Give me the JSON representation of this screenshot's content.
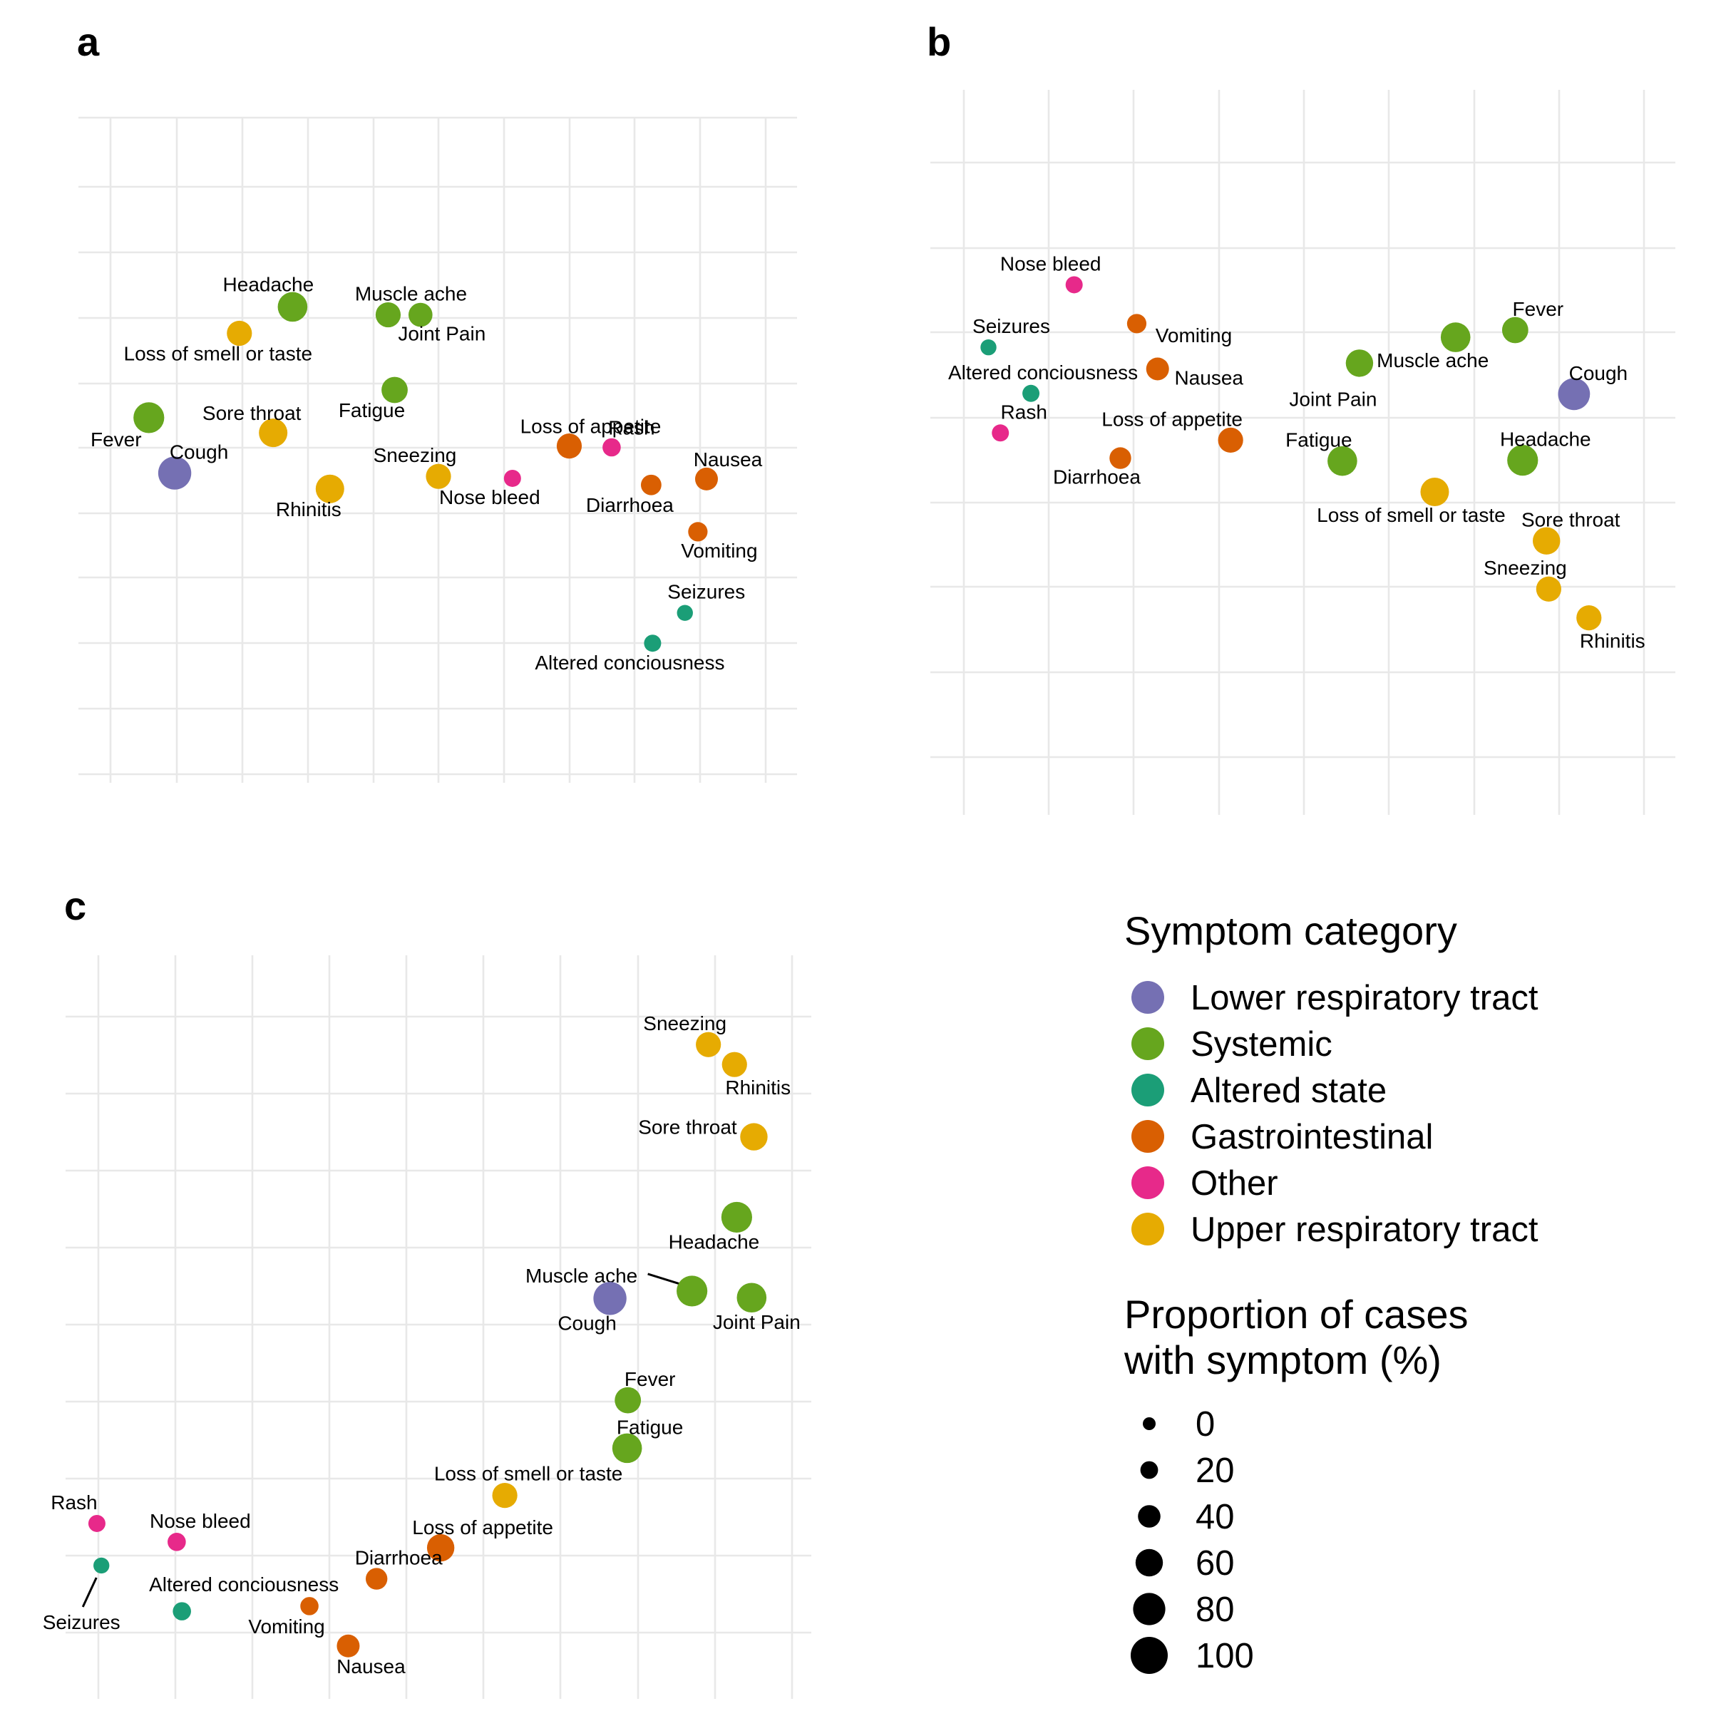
{
  "colors": {
    "Lower respiratory tract": "#7570b3",
    "Systemic": "#66a61e",
    "Altered state": "#1b9e77",
    "Gastrointestinal": "#d95f02",
    "Other": "#e7298a",
    "Upper respiratory tract": "#e6ab02"
  },
  "legend": {
    "category_title": "Symptom category",
    "categories": [
      "Lower respiratory tract",
      "Systemic",
      "Altered state",
      "Gastrointestinal",
      "Other",
      "Upper respiratory tract"
    ],
    "size_title_line1": "Proportion of cases",
    "size_title_line2": "with symptom (%)",
    "sizes": [
      0,
      20,
      40,
      60,
      80,
      100
    ]
  },
  "chart_data": [
    {
      "panel": "a",
      "type": "scatter",
      "grid": true,
      "axes": "hidden",
      "points": [
        {
          "label": "Headache",
          "category": "Systemic",
          "x": 0.298,
          "y": 0.713,
          "size": 80
        },
        {
          "label": "Muscle ache",
          "category": "Systemic",
          "x": 0.431,
          "y": 0.701,
          "size": 60
        },
        {
          "label": "Joint Pain",
          "category": "Systemic",
          "x": 0.476,
          "y": 0.701,
          "size": 55
        },
        {
          "label": "Loss of smell or taste",
          "category": "Upper respiratory tract",
          "x": 0.224,
          "y": 0.673,
          "size": 60
        },
        {
          "label": "Fatigue",
          "category": "Systemic",
          "x": 0.44,
          "y": 0.587,
          "size": 65
        },
        {
          "label": "Fever",
          "category": "Systemic",
          "x": 0.098,
          "y": 0.545,
          "size": 85
        },
        {
          "label": "Sore throat",
          "category": "Upper respiratory tract",
          "x": 0.271,
          "y": 0.522,
          "size": 75
        },
        {
          "label": "Cough",
          "category": "Lower respiratory tract",
          "x": 0.134,
          "y": 0.461,
          "size": 95
        },
        {
          "label": "Rhinitis",
          "category": "Upper respiratory tract",
          "x": 0.35,
          "y": 0.437,
          "size": 75
        },
        {
          "label": "Sneezing",
          "category": "Upper respiratory tract",
          "x": 0.501,
          "y": 0.456,
          "size": 60
        },
        {
          "label": "Nose bleed",
          "category": "Other",
          "x": 0.604,
          "y": 0.453,
          "size": 25
        },
        {
          "label": "Loss of appetite",
          "category": "Gastrointestinal",
          "x": 0.683,
          "y": 0.502,
          "size": 60
        },
        {
          "label": "Rash",
          "category": "Other",
          "x": 0.742,
          "y": 0.5,
          "size": 30
        },
        {
          "label": "Diarrhoea",
          "category": "Gastrointestinal",
          "x": 0.797,
          "y": 0.443,
          "size": 40
        },
        {
          "label": "Nausea",
          "category": "Gastrointestinal",
          "x": 0.874,
          "y": 0.452,
          "size": 50
        },
        {
          "label": "Vomiting",
          "category": "Gastrointestinal",
          "x": 0.862,
          "y": 0.372,
          "size": 35
        },
        {
          "label": "Seizures",
          "category": "Altered state",
          "x": 0.844,
          "y": 0.249,
          "size": 20
        },
        {
          "label": "Altered conciousness",
          "category": "Altered state",
          "x": 0.799,
          "y": 0.203,
          "size": 25
        }
      ]
    },
    {
      "panel": "b",
      "type": "scatter",
      "grid": true,
      "axes": "hidden",
      "points": [
        {
          "label": "Nose bleed",
          "category": "Other",
          "x": 0.193,
          "y": 0.729,
          "size": 25
        },
        {
          "label": "Vomiting",
          "category": "Gastrointestinal",
          "x": 0.277,
          "y": 0.675,
          "size": 35
        },
        {
          "label": "Seizures",
          "category": "Altered state",
          "x": 0.078,
          "y": 0.642,
          "size": 20
        },
        {
          "label": "Nausea",
          "category": "Gastrointestinal",
          "x": 0.305,
          "y": 0.612,
          "size": 50
        },
        {
          "label": "Altered conciousness",
          "category": "Altered state",
          "x": 0.135,
          "y": 0.578,
          "size": 25
        },
        {
          "label": "Rash",
          "category": "Other",
          "x": 0.094,
          "y": 0.523,
          "size": 25
        },
        {
          "label": "Diarrhoea",
          "category": "Gastrointestinal",
          "x": 0.255,
          "y": 0.488,
          "size": 45
        },
        {
          "label": "Loss of appetite",
          "category": "Gastrointestinal",
          "x": 0.403,
          "y": 0.513,
          "size": 60
        },
        {
          "label": "Joint Pain",
          "category": "Systemic",
          "x": 0.576,
          "y": 0.62,
          "size": 70
        },
        {
          "label": "Muscle ache",
          "category": "Systemic",
          "x": 0.705,
          "y": 0.656,
          "size": 80
        },
        {
          "label": "Fever",
          "category": "Systemic",
          "x": 0.785,
          "y": 0.666,
          "size": 65
        },
        {
          "label": "Cough",
          "category": "Lower respiratory tract",
          "x": 0.864,
          "y": 0.577,
          "size": 90
        },
        {
          "label": "Fatigue",
          "category": "Systemic",
          "x": 0.553,
          "y": 0.484,
          "size": 80
        },
        {
          "label": "Headache",
          "category": "Systemic",
          "x": 0.795,
          "y": 0.485,
          "size": 85
        },
        {
          "label": "Loss of smell or taste",
          "category": "Upper respiratory tract",
          "x": 0.677,
          "y": 0.441,
          "size": 75
        },
        {
          "label": "Sore throat",
          "category": "Upper respiratory tract",
          "x": 0.827,
          "y": 0.373,
          "size": 70
        },
        {
          "label": "Sneezing",
          "category": "Upper respiratory tract",
          "x": 0.83,
          "y": 0.306,
          "size": 60
        },
        {
          "label": "Rhinitis",
          "category": "Upper respiratory tract",
          "x": 0.884,
          "y": 0.266,
          "size": 60
        }
      ]
    },
    {
      "panel": "c",
      "type": "scatter",
      "grid": true,
      "axes": "hidden",
      "points": [
        {
          "label": "Sneezing",
          "category": "Upper respiratory tract",
          "x": 0.862,
          "y": 0.879,
          "size": 60
        },
        {
          "label": "Rhinitis",
          "category": "Upper respiratory tract",
          "x": 0.897,
          "y": 0.852,
          "size": 60
        },
        {
          "label": "Sore throat",
          "category": "Upper respiratory tract",
          "x": 0.923,
          "y": 0.754,
          "size": 70
        },
        {
          "label": "Headache",
          "category": "Systemic",
          "x": 0.9,
          "y": 0.645,
          "size": 85
        },
        {
          "label": "Muscle ache",
          "category": "Systemic",
          "x": 0.84,
          "y": 0.545,
          "size": 85
        },
        {
          "label": "Cough",
          "category": "Lower respiratory tract",
          "x": 0.73,
          "y": 0.535,
          "size": 95
        },
        {
          "label": "Joint Pain",
          "category": "Systemic",
          "x": 0.92,
          "y": 0.536,
          "size": 80
        },
        {
          "label": "Fever",
          "category": "Systemic",
          "x": 0.754,
          "y": 0.397,
          "size": 65
        },
        {
          "label": "Fatigue",
          "category": "Systemic",
          "x": 0.753,
          "y": 0.332,
          "size": 80
        },
        {
          "label": "Loss of smell or taste",
          "category": "Upper respiratory tract",
          "x": 0.589,
          "y": 0.268,
          "size": 60
        },
        {
          "label": "Loss of appetite",
          "category": "Gastrointestinal",
          "x": 0.503,
          "y": 0.197,
          "size": 70
        },
        {
          "label": "Rash",
          "category": "Other",
          "x": 0.042,
          "y": 0.23,
          "size": 25
        },
        {
          "label": "Nose bleed",
          "category": "Other",
          "x": 0.149,
          "y": 0.205,
          "size": 30
        },
        {
          "label": "Diarrhoea",
          "category": "Gastrointestinal",
          "x": 0.417,
          "y": 0.155,
          "size": 45
        },
        {
          "label": "Seizures",
          "category": "Altered state",
          "x": 0.048,
          "y": 0.173,
          "size": 20
        },
        {
          "label": "Altered conciousness",
          "category": "Altered state",
          "x": 0.156,
          "y": 0.111,
          "size": 30
        },
        {
          "label": "Vomiting",
          "category": "Gastrointestinal",
          "x": 0.327,
          "y": 0.118,
          "size": 30
        },
        {
          "label": "Nausea",
          "category": "Gastrointestinal",
          "x": 0.379,
          "y": 0.064,
          "size": 50
        }
      ]
    }
  ]
}
